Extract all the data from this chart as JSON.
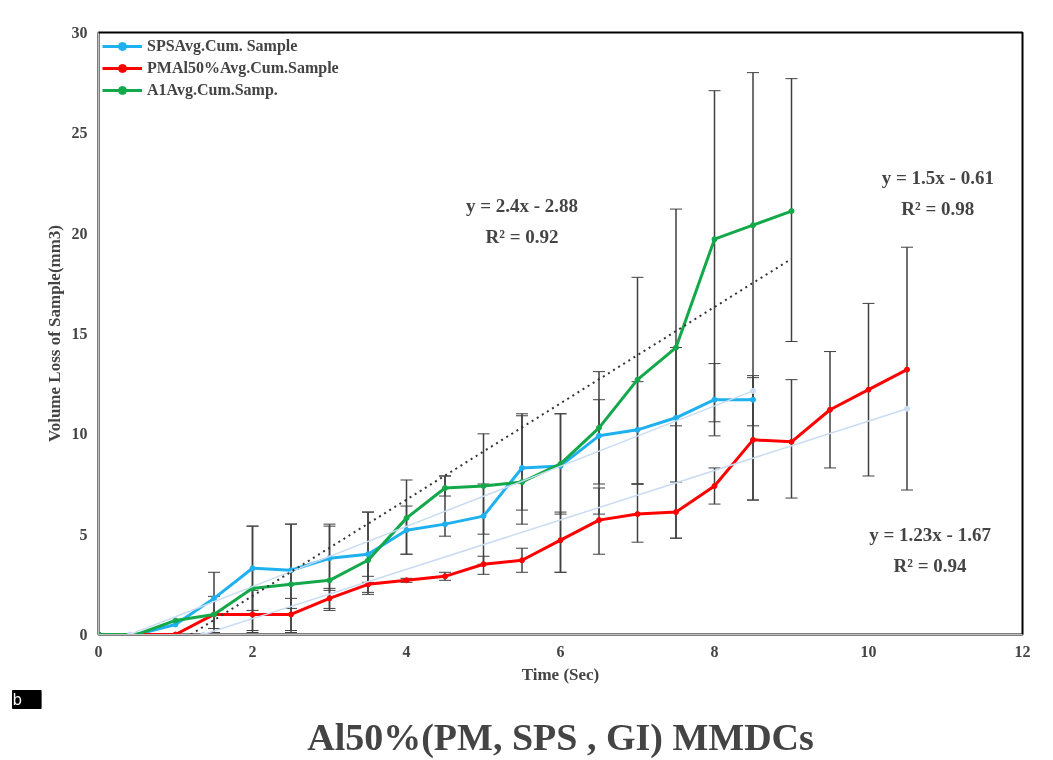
{
  "chart_data": {
    "type": "line",
    "title": "Al50%(PM, SPS , GI) MMDCs",
    "xlabel": "Time (Sec)",
    "ylabel": "Volume Loss of Sample(mm3)",
    "xlim": [
      0,
      12
    ],
    "xticks": [
      0,
      2,
      4,
      6,
      8,
      10,
      12
    ],
    "ylim": [
      0,
      30
    ],
    "yticks": [
      0,
      5,
      10,
      15,
      20,
      25,
      30
    ],
    "grid": false,
    "legend": "top left",
    "marker": "circle",
    "line_style": "solid",
    "series": [
      {
        "name": "SPSAvg.Cum. Sample",
        "color": "#1fb0ef",
        "x": [
          0,
          0.5,
          1,
          1.5,
          2,
          2.5,
          3,
          3.5,
          4,
          4.5,
          5,
          5.5,
          6,
          6.5,
          7,
          7.5,
          8,
          8.5
        ],
        "values": [
          0,
          0,
          0.5,
          1.8,
          3.3,
          3.2,
          3.8,
          4.0,
          5.2,
          5.5,
          5.9,
          8.3,
          8.4,
          9.9,
          10.2,
          10.8,
          11.7,
          11.7
        ],
        "errors": [
          null,
          null,
          null,
          null,
          [
            1.2,
            5.4
          ],
          [
            1.3,
            5.5
          ],
          [
            2.2,
            5.4
          ],
          [
            2.6,
            6.1
          ],
          [
            4.0,
            6.4
          ],
          [
            4.9,
            7.9
          ],
          [
            5.0,
            7.5
          ],
          [
            6.2,
            10.9
          ],
          [
            6.0,
            11.0
          ],
          [
            7.5,
            11.7
          ],
          [
            7.5,
            12.6
          ],
          [
            7.6,
            14.3
          ],
          [
            10.6,
            13.5
          ],
          [
            10.4,
            12.8
          ]
        ]
      },
      {
        "name": "PMAl50%Avg.Cum.Sample",
        "color": "#ff0000",
        "x": [
          0,
          0.5,
          1,
          1.5,
          2,
          2.5,
          3,
          3.5,
          4,
          4.5,
          5,
          5.5,
          6,
          6.5,
          7,
          7.5,
          8,
          8.5,
          9,
          9.5,
          10,
          10.5
        ],
        "values": [
          0,
          0,
          0,
          1.0,
          1.0,
          1.0,
          1.8,
          2.5,
          2.7,
          2.9,
          3.5,
          3.7,
          4.7,
          5.7,
          6.0,
          6.1,
          7.4,
          9.7,
          9.6,
          11.2,
          12.2,
          13.2
        ],
        "errors": [
          null,
          null,
          null,
          [
            0.1,
            1.9
          ],
          [
            0.1,
            2.2
          ],
          [
            0.2,
            1.8
          ],
          [
            1.3,
            2.3
          ],
          [
            2.0,
            2.9
          ],
          [
            2.6,
            2.8
          ],
          [
            2.7,
            3.1
          ],
          [
            3.0,
            3.9
          ],
          [
            3.1,
            4.3
          ],
          [
            3.1,
            6.1
          ],
          [
            4.0,
            7.3
          ],
          [
            4.6,
            7.5
          ],
          [
            4.8,
            10.4
          ],
          [
            6.5,
            8.3
          ],
          [
            6.7,
            12.9
          ],
          [
            6.8,
            12.7
          ],
          [
            8.3,
            14.1
          ],
          [
            7.9,
            16.5
          ],
          [
            7.2,
            19.3
          ]
        ]
      },
      {
        "name": "A1Avg.Cum.Samp.",
        "color": "#13a84a",
        "x": [
          0,
          0.5,
          1,
          1.5,
          2,
          2.5,
          3,
          3.5,
          4,
          4.5,
          5,
          5.5,
          6,
          6.5,
          7,
          7.5,
          8,
          8.5,
          9
        ],
        "values": [
          0,
          0,
          0.7,
          1.0,
          2.3,
          2.5,
          2.7,
          3.7,
          5.8,
          7.3,
          7.4,
          7.6,
          8.5,
          10.3,
          12.7,
          14.3,
          19.7,
          20.4,
          21.1
        ],
        "errors": [
          null,
          null,
          null,
          [
            0.3,
            3.1
          ],
          [
            0.2,
            5.4
          ],
          [
            0.1,
            5.5
          ],
          [
            1.2,
            5.5
          ],
          [
            2.1,
            6.1
          ],
          [
            4.0,
            7.7
          ],
          [
            6.9,
            7.9
          ],
          [
            3.5,
            10.0
          ],
          [
            5.5,
            11.0
          ],
          [
            3.1,
            11.0
          ],
          [
            6.0,
            13.1
          ],
          [
            7.5,
            17.8
          ],
          [
            4.8,
            21.2
          ],
          [
            9.9,
            27.1
          ],
          [
            6.7,
            28.0
          ],
          [
            14.6,
            27.7
          ]
        ]
      },
      {
        "type": "line",
        "color": "#c9dcf2",
        "x": [
          0.41,
          8.5
        ],
        "values": [
          0,
          12.14
        ]
      },
      {
        "type": "line",
        "color": "#c9dcf2",
        "x": [
          1.36,
          10.5
        ],
        "values": [
          0,
          11.25
        ]
      },
      {
        "type": "line",
        "color": "#333333",
        "line_style": "dotted",
        "marker": "none",
        "x": [
          1.2,
          9
        ],
        "values": [
          0,
          18.72
        ]
      }
    ],
    "annotations": [
      "y = 2.4x - 2.88\nR² = 0.92",
      "y = 1.5x - 0.61\nR² = 0.98",
      "y = 1.23x - 1.67\nR² = 0.94",
      "b"
    ]
  }
}
